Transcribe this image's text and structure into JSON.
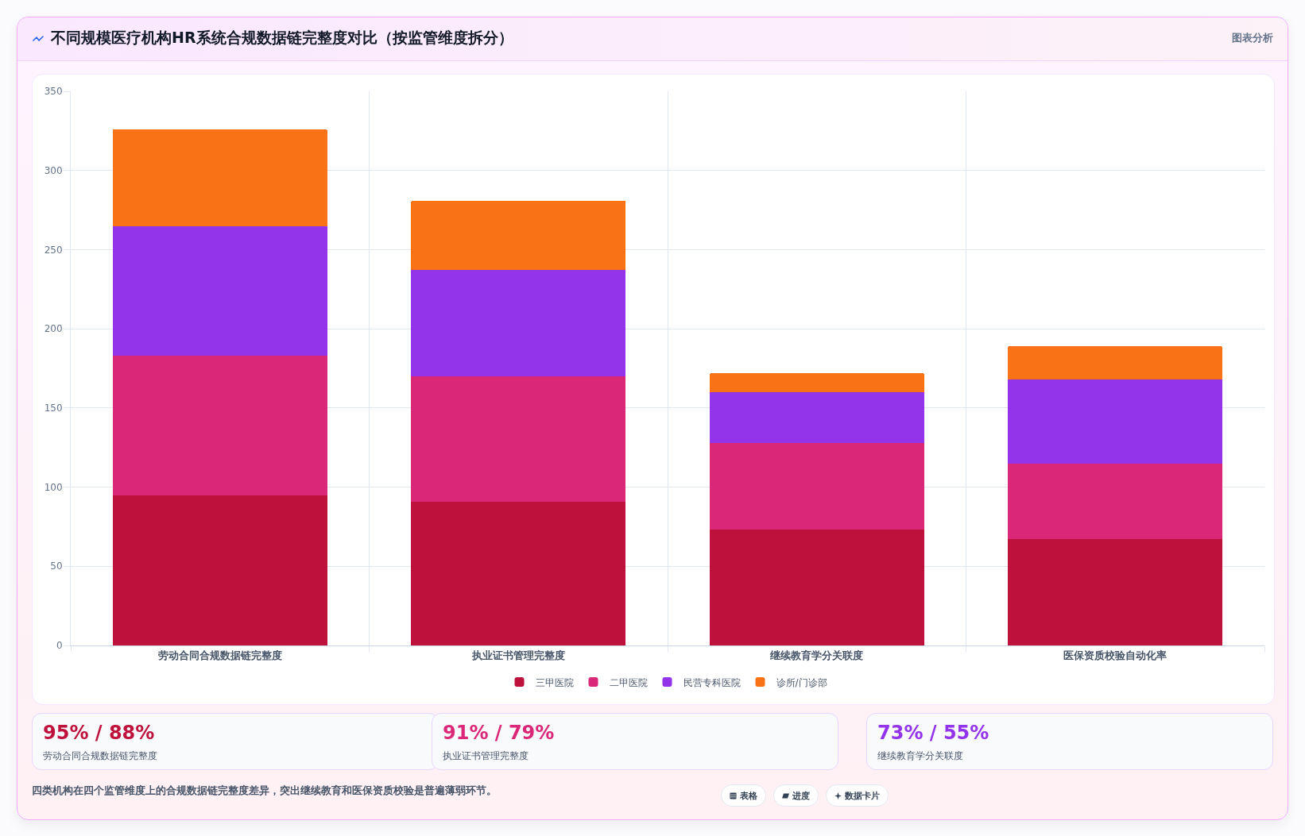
{
  "chart_data": {
    "type": "bar",
    "title": "不同规模医疗机构HR系统合规数据链完整度对比（按监管维度拆分）",
    "categories": [
      "劳动合同合规数据链完整度",
      "执业证书管理完整度",
      "继续教育学分关联度",
      "医保资质校验自动化率"
    ],
    "series": [
      {
        "name": "三甲医院",
        "color": "#be123c",
        "values": [
          95,
          91,
          73,
          67
        ]
      },
      {
        "name": "二甲医院",
        "color": "#db2777",
        "values": [
          88,
          79,
          55,
          48
        ]
      },
      {
        "name": "民营专科医院",
        "color": "#9333ea",
        "values": [
          82,
          67,
          32,
          53
        ]
      },
      {
        "name": "诊所/门诊部",
        "color": "#f97316",
        "values": [
          61,
          44,
          12,
          21
        ]
      }
    ],
    "stacked": true,
    "ylim": [
      0,
      350
    ],
    "yticks": [
      0,
      50,
      100,
      150,
      200,
      250,
      300,
      350
    ],
    "grid": true,
    "legend": "bottom",
    "annotations": [
      "图表分析",
      "95% / 88%",
      "劳动合同合规数据链完整度",
      "91% / 79%",
      "执业证书管理完整度",
      "73% / 55%",
      "继续教育学分关联度",
      "四类机构在四个监管维度上的合规数据链完整度差异，突出继续教育和医保资质校验是普遍薄弱环节。",
      "表格",
      "进度",
      "数据卡片"
    ]
  }
}
